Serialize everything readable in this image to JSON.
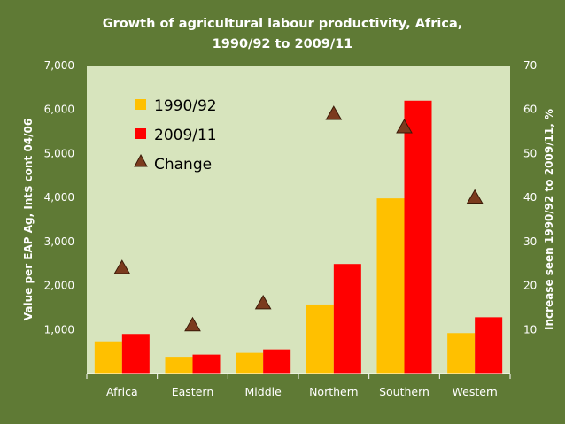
{
  "colors": {
    "background": "#5f7a35",
    "plot_area": "#d7e4bd",
    "series_1990": "#ffc000",
    "series_2009": "#ff0000",
    "series_change": "#7b3b1e",
    "text": "#ffffff"
  },
  "chart_data": {
    "type": "bar",
    "title_lines": [
      "Growth of agricultural labour productivity, Africa,",
      "1990/92 to 2009/11"
    ],
    "categories": [
      "Africa",
      "Eastern",
      "Middle",
      "Northern",
      "Southern",
      "Western"
    ],
    "series": [
      {
        "name": "1990/92",
        "type": "bar",
        "axis": "left",
        "values": [
          730,
          380,
          470,
          1570,
          3980,
          920
        ]
      },
      {
        "name": "2009/11",
        "type": "bar",
        "axis": "left",
        "values": [
          900,
          430,
          550,
          2490,
          6200,
          1280
        ]
      },
      {
        "name": "Change",
        "type": "scatter",
        "axis": "right",
        "marker": "triangle",
        "values": [
          24,
          11,
          16,
          59,
          56,
          40
        ]
      }
    ],
    "y_left": {
      "label": "Value per EAP Ag, Int$ cont 04/06",
      "min": 0,
      "max": 7000,
      "ticks": [
        0,
        1000,
        2000,
        3000,
        4000,
        5000,
        6000,
        7000
      ],
      "tick_labels": [
        "-",
        "1,000",
        "2,000",
        "3,000",
        "4,000",
        "5,000",
        "6,000",
        "7,000"
      ]
    },
    "y_right": {
      "label": "Increase seen 1990/92 to 2009/11, %",
      "min": 0,
      "max": 70,
      "ticks": [
        0,
        10,
        20,
        30,
        40,
        50,
        60,
        70
      ],
      "tick_labels": [
        "-",
        "10",
        "20",
        "30",
        "40",
        "50",
        "60",
        "70"
      ]
    },
    "legend": {
      "position": "top-left-inside",
      "entries": [
        "1990/92",
        "2009/11",
        "Change"
      ]
    },
    "grid": false
  }
}
